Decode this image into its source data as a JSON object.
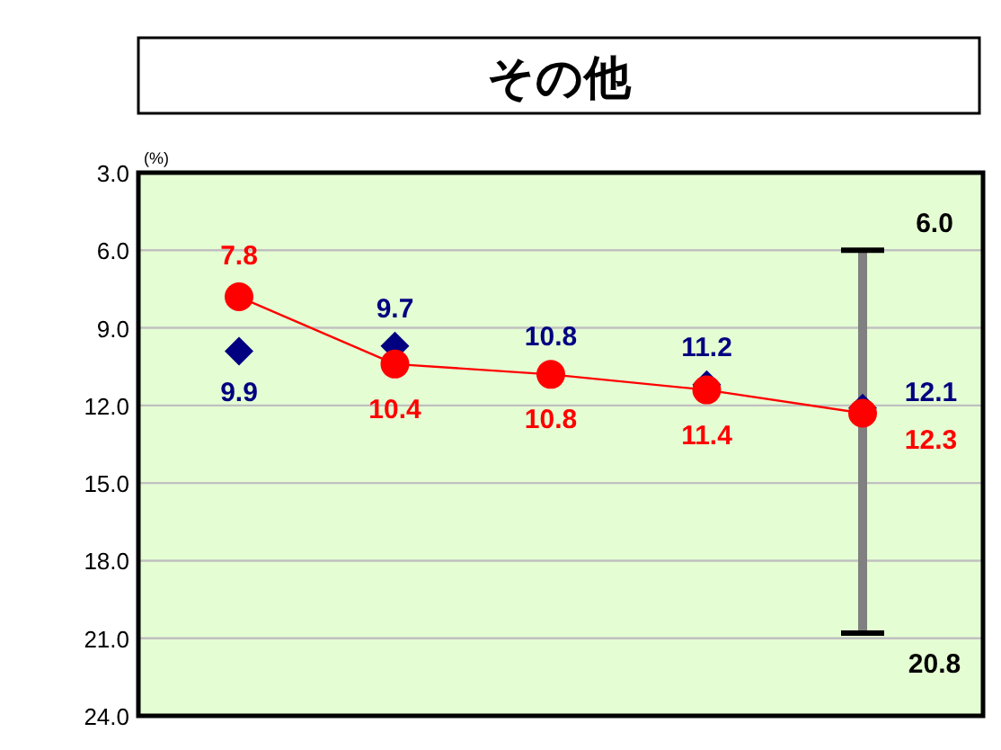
{
  "chart_data": {
    "type": "line",
    "title": "その他",
    "ylabel": "(%)",
    "categories": [
      null,
      null,
      null,
      null,
      null
    ],
    "ylim": [
      24,
      3
    ],
    "yticks": [
      {
        "value": 3,
        "label": "3.0"
      },
      {
        "value": 6,
        "label": "6.0"
      },
      {
        "value": 9,
        "label": "9.0"
      },
      {
        "value": 12,
        "label": "12.0"
      },
      {
        "value": 15,
        "label": "15.0"
      },
      {
        "value": 18,
        "label": "18.0"
      },
      {
        "value": 21,
        "label": "21.0"
      },
      {
        "value": 24,
        "label": "24.0"
      }
    ],
    "grid": "y",
    "series": [
      {
        "type": "scatter",
        "color": "#000080",
        "marker": "diamond",
        "values": [
          9.9,
          9.7,
          null,
          11.2,
          12.1
        ],
        "value_labels": [
          "9.9",
          "9.7",
          "10.8",
          "11.2",
          "12.1"
        ]
      },
      {
        "type": "line",
        "color": "#ff0000",
        "marker": "circle",
        "line_style": "solid",
        "values": [
          7.8,
          10.4,
          10.8,
          11.4,
          12.3
        ],
        "value_labels": [
          "7.8",
          "10.4",
          "10.8",
          "11.4",
          "12.3"
        ],
        "errors": [
          null,
          null,
          null,
          null,
          [
            6.0,
            20.8
          ]
        ]
      }
    ],
    "annotations": [
      "6.0",
      "20.8"
    ]
  }
}
